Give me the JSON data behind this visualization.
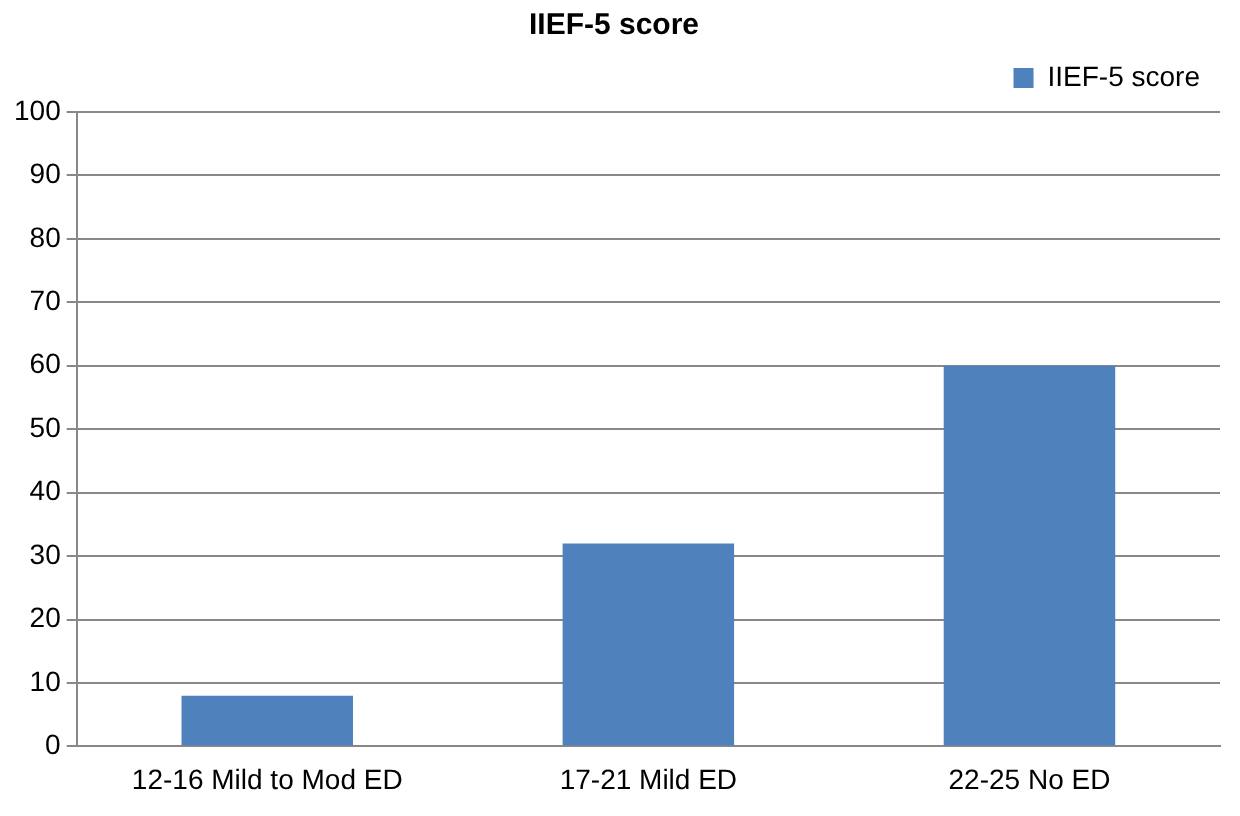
{
  "chart_data": {
    "type": "bar",
    "title": "IIEF-5 score",
    "categories": [
      "12-16 Mild to Mod ED",
      "17-21 Mild ED",
      "22-25 No ED"
    ],
    "series": [
      {
        "name": "IIEF-5 score",
        "color": "#4f81bd",
        "values": [
          8,
          32,
          60
        ]
      }
    ],
    "ylim": [
      0,
      100
    ],
    "yticks": [
      0,
      10,
      20,
      30,
      40,
      50,
      60,
      70,
      80,
      90,
      100
    ],
    "grid": "y",
    "legend": "top right"
  }
}
